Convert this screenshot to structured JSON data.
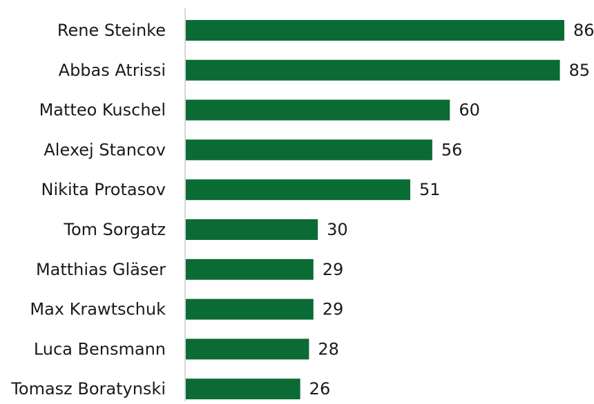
{
  "chart_data": {
    "type": "bar",
    "orientation": "horizontal",
    "categories": [
      "Rene Steinke",
      "Abbas Atrissi",
      "Matteo Kuschel",
      "Alexej Stancov",
      "Nikita Protasov",
      "Tom Sorgatz",
      "Matthias Gläser",
      "Max Krawtschuk",
      "Luca Bensmann",
      "Tomasz Boratynski"
    ],
    "values": [
      86,
      85,
      60,
      56,
      51,
      30,
      29,
      29,
      28,
      26
    ],
    "xlim": [
      0,
      86
    ],
    "grid": false,
    "legend": "none",
    "data_labels": true,
    "colors": {
      "bar": "#0b6b34",
      "axis": "#c8c8c8",
      "text": "#1a1a1a"
    }
  }
}
